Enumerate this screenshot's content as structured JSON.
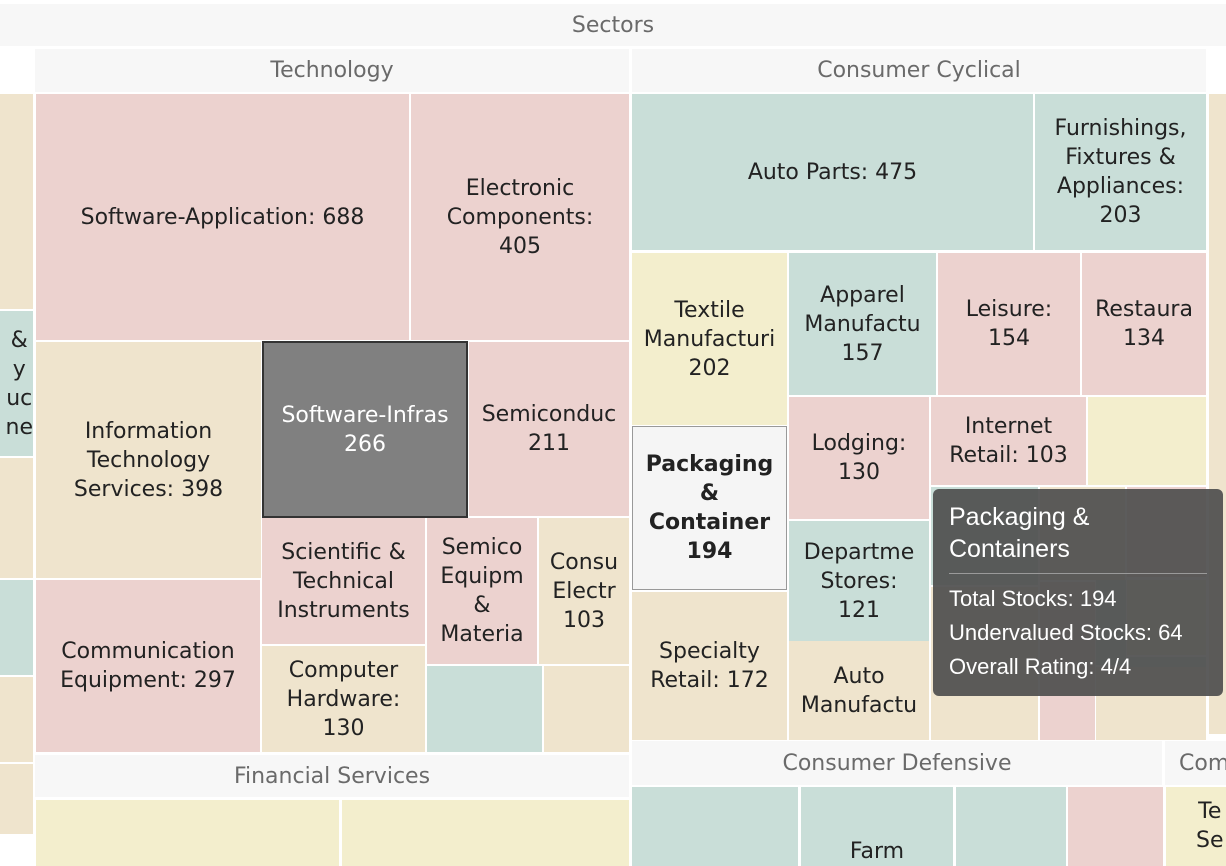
{
  "colors": {
    "red": "#ecd2cf",
    "teal": "#c9ded8",
    "yellow": "#f3eecd",
    "beige": "#efe4cd",
    "selected": "#808080",
    "highlight": "#f5f5f5"
  },
  "chart_data": {
    "type": "treemap",
    "root": "Sectors",
    "headers": [
      "Sectors",
      "Technology",
      "Consumer Cyclical",
      "Financial Services",
      "Consumer Defensive",
      "Com"
    ],
    "tiles": [
      {
        "label": "Software-Application: 688",
        "color": "red"
      },
      {
        "label": "Electronic\nComponents:\n405",
        "color": "red"
      },
      {
        "label": "Information\nTechnology\nServices: 398",
        "color": "beige"
      },
      {
        "label": "Software-Infras\n266",
        "color": "selected",
        "state": "selected"
      },
      {
        "label": "Semiconduc\n211",
        "color": "red"
      },
      {
        "label": "Scientific &\nTechnical\nInstruments",
        "color": "red"
      },
      {
        "label": "Semico\nEquipm\n&\nMateria",
        "color": "red"
      },
      {
        "label": "Consu\nElectr\n103",
        "color": "beige"
      },
      {
        "label": "Communication\nEquipment: 297",
        "color": "red"
      },
      {
        "label": "Computer\nHardware:\n130",
        "color": "beige"
      },
      {
        "label": "",
        "color": "teal"
      },
      {
        "label": "",
        "color": "beige"
      },
      {
        "label": "Auto Parts: 475",
        "color": "teal"
      },
      {
        "label": "Furnishings,\nFixtures &\nAppliances:\n203",
        "color": "teal"
      },
      {
        "label": "Textile\nManufacturi\n202",
        "color": "yellow"
      },
      {
        "label": "Apparel\nManufactu\n157",
        "color": "teal"
      },
      {
        "label": "Leisure:\n154",
        "color": "red"
      },
      {
        "label": "Restaura\n134",
        "color": "red"
      },
      {
        "label": "Lodging:\n130",
        "color": "red"
      },
      {
        "label": "Internet\nRetail: 103",
        "color": "red"
      },
      {
        "label": "",
        "color": "yellow"
      },
      {
        "label": "Departme\nStores:\n121",
        "color": "teal"
      },
      {
        "label": "Specialty\nRetail: 172",
        "color": "beige"
      },
      {
        "label": "Auto\nManufactu",
        "color": "beige"
      },
      {
        "label": "",
        "color": "teal"
      },
      {
        "label": "",
        "color": "beige"
      },
      {
        "label": "",
        "color": "red"
      },
      {
        "label": "",
        "color": "teal"
      },
      {
        "label": "",
        "color": "yellow"
      },
      {
        "label": "",
        "color": "teal"
      },
      {
        "label": "",
        "color": "beige"
      },
      {
        "label": "",
        "color": "red"
      },
      {
        "label": "",
        "color": "beige"
      },
      {
        "label": "",
        "color": "beige"
      },
      {
        "label": "&\ny\nuc\nne",
        "color": "teal"
      },
      {
        "label": "",
        "color": "beige"
      },
      {
        "label": "",
        "color": "teal"
      },
      {
        "label": "",
        "color": "beige"
      },
      {
        "label": "",
        "color": "beige"
      },
      {
        "label": "",
        "color": "yellow"
      },
      {
        "label": "",
        "color": "yellow"
      },
      {
        "label": "",
        "color": "teal"
      },
      {
        "label": "Farm",
        "color": "teal"
      },
      {
        "label": "",
        "color": "teal"
      },
      {
        "label": "",
        "color": "red"
      },
      {
        "label": "Te\nSe",
        "color": "yellow"
      },
      {
        "label": "",
        "color": "beige"
      },
      {
        "label": "Packaging\n&\nContainer\n194",
        "color": "highlight",
        "state": "hovered"
      }
    ]
  },
  "tooltip": {
    "title": "Packaging & Containers",
    "total": "Total Stocks: 194",
    "undervalued": "Undervalued Stocks: 64",
    "rating": "Overall Rating: 4/4"
  }
}
